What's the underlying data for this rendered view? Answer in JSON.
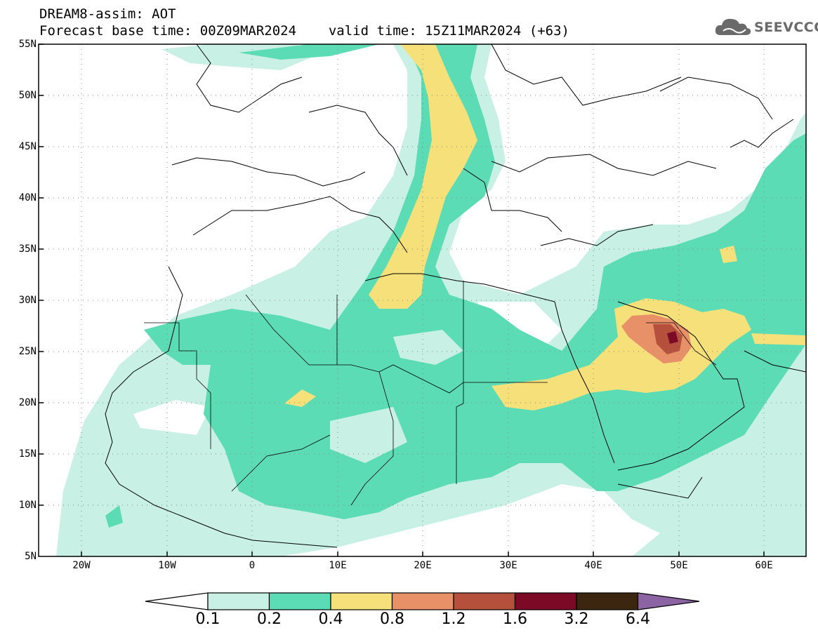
{
  "header": {
    "line1": "DREAM8-assim: AOT",
    "base_time": "Forecast base time: 00Z09MAR2024",
    "valid_time": "valid time: 15Z11MAR2024 (+63)"
  },
  "logo": {
    "text": "SEEVCCC",
    "icon": "cloud-icon"
  },
  "map": {
    "extent": {
      "lon": [
        -25,
        65
      ],
      "lat": [
        5,
        55
      ]
    },
    "lat_labels": [
      "55N",
      "50N",
      "45N",
      "40N",
      "35N",
      "30N",
      "25N",
      "20N",
      "15N",
      "10N",
      "5N"
    ],
    "lon_labels": [
      "20W",
      "10W",
      "0",
      "10E",
      "20E",
      "30E",
      "40E",
      "50E",
      "60E"
    ],
    "grid": "dotted"
  },
  "colorbar": {
    "labels": [
      "0.1",
      "0.2",
      "0.4",
      "0.8",
      "1.2",
      "1.6",
      "3.2",
      "6.4"
    ],
    "colors": [
      "#ffffff",
      "#c8f0e4",
      "#5cdcb4",
      "#f6e07a",
      "#e89068",
      "#b4503c",
      "#7c0a26",
      "#3c2610",
      "#8c64a4"
    ]
  }
}
